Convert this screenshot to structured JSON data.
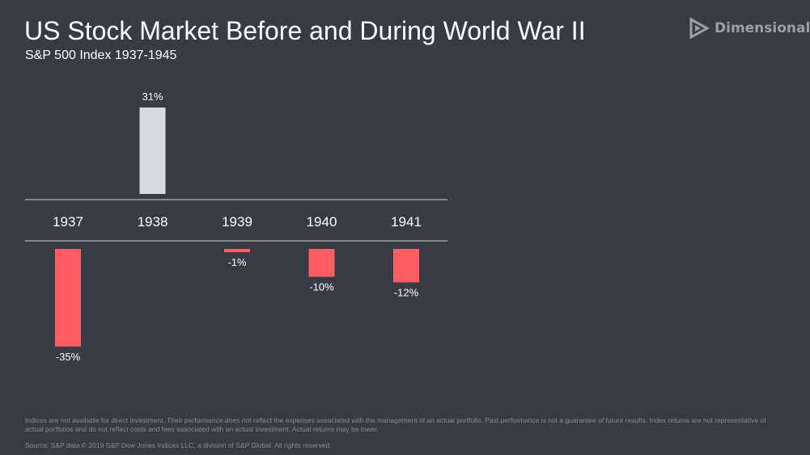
{
  "slide": {
    "title": "US Stock Market Before and During World War II",
    "subtitle": "S&P 500 Index 1937-1945",
    "logo_text": "Dimensional",
    "logo_icon": "dimensional-logo-icon",
    "footnote": "Indices are not available for direct investment. Their performance does not reflect the expenses associated with the management of an actual portfolio. Past performance is not a guarantee of future results. Index returns are not representative of actual portfolios and do not reflect costs and fees associated with an actual investment. Actual returns may be lower.",
    "source": "Source: S&P data © 2019 S&P Dow Jones Indices LLC, a division of S&P Global. All rights reserved."
  },
  "colors": {
    "background": "#363b46",
    "positive": "#d6dae2",
    "negative": "#ff5d62",
    "axis_line": "#d0d3d9",
    "text": "#ffffff",
    "muted_text": "#878c96"
  },
  "chart_data": {
    "type": "bar",
    "title": "US Stock Market Before and During World War II",
    "subtitle": "S&P 500 Index 1937-1945",
    "categories": [
      "1937",
      "1938",
      "1939",
      "1940",
      "1941"
    ],
    "values": [
      -35,
      31,
      -1,
      -10,
      -12
    ],
    "data_labels": [
      "-35%",
      "31%",
      "-1%",
      "-10%",
      "-12%"
    ],
    "unit": "%",
    "xlabel": "",
    "ylabel": "",
    "grid": false,
    "legend": "none"
  }
}
